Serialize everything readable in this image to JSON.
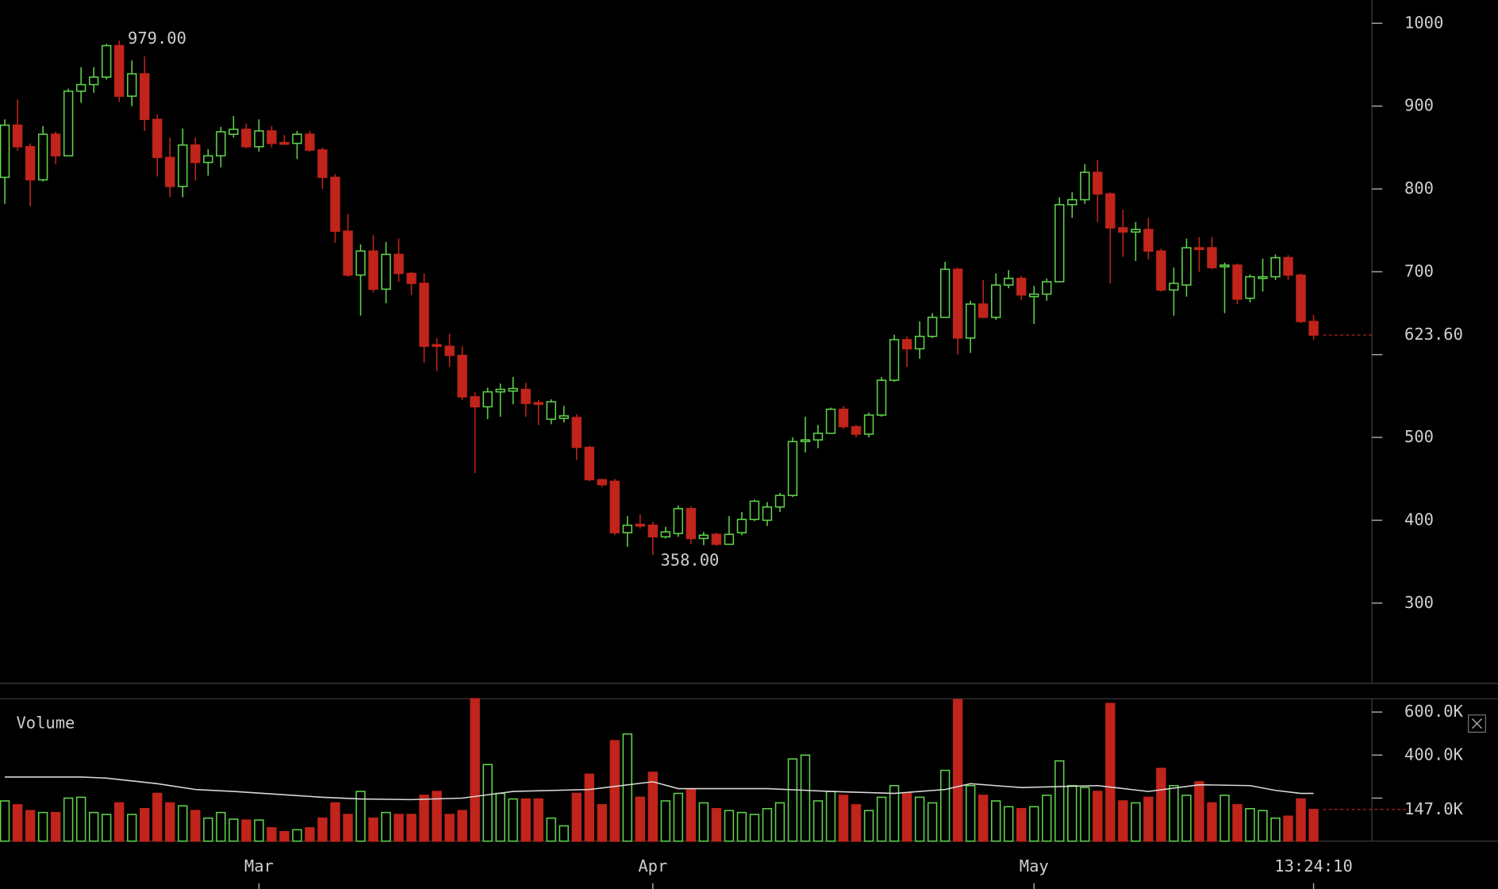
{
  "chart_data": {
    "type": "candlestick",
    "up_color": "#5fd14b",
    "down_color": "#c0241b",
    "open": [
      814,
      877,
      851,
      811,
      866,
      840,
      918,
      926,
      935,
      973,
      912,
      939,
      884,
      838,
      803,
      853,
      832,
      840,
      866,
      872,
      851,
      870,
      856,
      855,
      866,
      847,
      814,
      749,
      696,
      725,
      679,
      721,
      698,
      686,
      612,
      610,
      599,
      549,
      537,
      555,
      556,
      558,
      542,
      522,
      523,
      524,
      488,
      449,
      447,
      385,
      395,
      394,
      380,
      384,
      414,
      378,
      383,
      371,
      385,
      401,
      400,
      416,
      430,
      495,
      497,
      505,
      534,
      513,
      504,
      527,
      569,
      618,
      607,
      622,
      645,
      703,
      620,
      661,
      645,
      684,
      692,
      670,
      673,
      688,
      781,
      787,
      820,
      794,
      753,
      748,
      751,
      725,
      678,
      684,
      729,
      729,
      706,
      708,
      668,
      692,
      694,
      717,
      696,
      640
    ],
    "high": [
      884,
      908,
      855,
      876,
      869,
      921,
      947,
      947,
      975,
      979,
      955,
      960,
      890,
      862,
      873,
      862,
      848,
      875,
      888,
      879,
      884,
      876,
      865,
      870,
      870,
      850,
      818,
      770,
      733,
      744,
      736,
      740,
      700,
      698,
      620,
      625,
      610,
      555,
      560,
      565,
      573,
      566,
      545,
      546,
      538,
      528,
      490,
      450,
      450,
      405,
      407,
      398,
      392,
      418,
      417,
      386,
      385,
      405,
      410,
      425,
      422,
      433,
      500,
      525,
      515,
      536,
      538,
      515,
      530,
      573,
      624,
      622,
      640,
      650,
      712,
      705,
      665,
      690,
      698,
      702,
      695,
      683,
      692,
      790,
      796,
      830,
      835,
      796,
      775,
      760,
      765,
      728,
      705,
      740,
      742,
      742,
      711,
      710,
      697,
      716,
      721,
      720,
      698,
      648
    ],
    "low": [
      782,
      846,
      779,
      809,
      830,
      840,
      904,
      916,
      932,
      905,
      900,
      870,
      815,
      790,
      790,
      810,
      816,
      826,
      862,
      849,
      845,
      850,
      853,
      836,
      845,
      800,
      735,
      694,
      647,
      675,
      662,
      688,
      672,
      590,
      580,
      585,
      545,
      457,
      522,
      525,
      540,
      525,
      515,
      516,
      518,
      473,
      447,
      440,
      382,
      368,
      390,
      358,
      378,
      380,
      371,
      370,
      369,
      371,
      382,
      399,
      393,
      410,
      428,
      482,
      487,
      505,
      510,
      500,
      500,
      525,
      567,
      585,
      595,
      620,
      645,
      600,
      602,
      644,
      642,
      680,
      666,
      637,
      665,
      688,
      765,
      782,
      760,
      686,
      718,
      713,
      715,
      676,
      647,
      670,
      700,
      703,
      650,
      661,
      663,
      676,
      690,
      690,
      638,
      618
    ],
    "close": [
      877,
      851,
      811,
      866,
      840,
      918,
      926,
      935,
      973,
      912,
      939,
      884,
      838,
      803,
      853,
      832,
      840,
      869,
      872,
      851,
      870,
      855,
      854,
      866,
      847,
      814,
      749,
      696,
      725,
      679,
      721,
      698,
      686,
      610,
      610,
      599,
      549,
      537,
      555,
      558,
      559,
      541,
      540,
      543,
      526,
      488,
      449,
      443,
      385,
      394,
      393,
      380,
      386,
      414,
      378,
      382,
      371,
      383,
      401,
      423,
      416,
      430,
      495,
      497,
      505,
      534,
      513,
      504,
      527,
      569,
      618,
      607,
      622,
      645,
      703,
      620,
      661,
      645,
      684,
      692,
      672,
      673,
      688,
      781,
      787,
      820,
      794,
      753,
      748,
      751,
      725,
      678,
      686,
      729,
      727,
      705,
      708,
      667,
      694,
      694,
      717,
      696,
      640,
      623.6
    ],
    "xlim": [
      -0.38,
      107.59
    ],
    "xticks": [
      {
        "value": 20,
        "label": "Mar"
      },
      {
        "value": 51,
        "label": "Apr"
      },
      {
        "value": 81,
        "label": "May"
      },
      {
        "value": 103,
        "label": "13:24:10"
      }
    ],
    "ylim": [
      203,
      1028
    ],
    "yticks": [
      300,
      400,
      500,
      {
        "value": 600,
        "label": null
      },
      700,
      800,
      900,
      1000
    ],
    "high_label": {
      "value": 979,
      "label": "979.00"
    },
    "low_label": {
      "value": 358,
      "label": "358.00"
    },
    "last_price": {
      "value": 623.6,
      "label": "623.60"
    },
    "volume": {
      "title": "Volume",
      "values": [
        187,
        169,
        142,
        133,
        133,
        200,
        204,
        133,
        124,
        178,
        124,
        151,
        222,
        178,
        164,
        142,
        107,
        133,
        102,
        98,
        98,
        62,
        44,
        53,
        62,
        107,
        178,
        124,
        231,
        107,
        133,
        124,
        124,
        213,
        231,
        124,
        142,
        662,
        356,
        222,
        196,
        196,
        196,
        107,
        71,
        222,
        311,
        169,
        467,
        498,
        204,
        320,
        187,
        222,
        240,
        178,
        151,
        142,
        133,
        124,
        151,
        178,
        382,
        400,
        187,
        231,
        213,
        169,
        142,
        204,
        258,
        222,
        204,
        178,
        329,
        658,
        258,
        213,
        187,
        160,
        151,
        160,
        213,
        373,
        258,
        249,
        231,
        640,
        187,
        178,
        204,
        338,
        258,
        213,
        276,
        178,
        213,
        169,
        151,
        142,
        107,
        116,
        196,
        147
      ],
      "ylim": [
        0,
        662
      ],
      "yticks": [
        {
          "value": 600,
          "label": "600.0K"
        },
        {
          "value": 400,
          "label": "400.0K"
        },
        {
          "value": 200,
          "label": null
        }
      ],
      "last": {
        "value": 147,
        "label": "147.0K"
      },
      "ma": {
        "color": "#d8d8d8",
        "x": [
          0,
          6,
          8,
          12,
          15,
          18,
          25,
          28,
          32,
          36,
          40,
          46,
          51,
          53,
          60,
          65,
          70,
          74,
          76,
          80,
          86,
          90,
          94,
          98,
          100,
          102,
          103
        ],
        "values": [
          298,
          298,
          293,
          267,
          240,
          231,
          204,
          196,
          193,
          200,
          231,
          240,
          276,
          244,
          244,
          231,
          222,
          240,
          267,
          249,
          258,
          231,
          262,
          258,
          236,
          222,
          222
        ]
      }
    }
  }
}
